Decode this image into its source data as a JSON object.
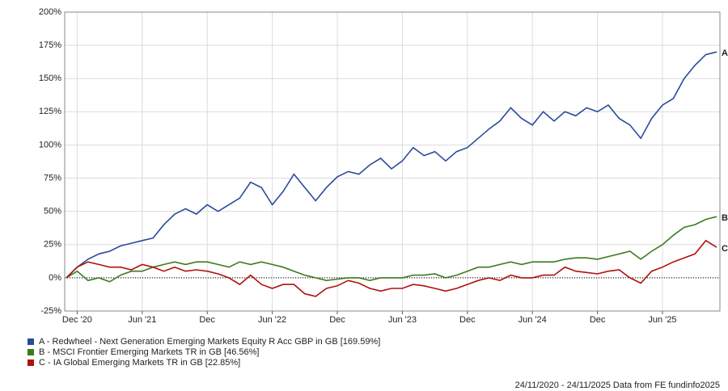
{
  "chart_data": {
    "type": "line",
    "categories": [
      null,
      "Dec '20",
      null,
      null,
      null,
      null,
      null,
      "Jun '21",
      null,
      null,
      null,
      null,
      null,
      "Dec",
      null,
      null,
      null,
      null,
      null,
      "Jun '22",
      null,
      null,
      null,
      null,
      null,
      "Dec",
      null,
      null,
      null,
      null,
      null,
      "Jun '23",
      null,
      null,
      null,
      null,
      null,
      "Dec",
      null,
      null,
      null,
      null,
      null,
      "Jun '24",
      null,
      null,
      null,
      null,
      null,
      "Dec",
      null,
      null,
      null,
      null,
      null,
      "Jun '25",
      null,
      null,
      null,
      null,
      null
    ],
    "series": [
      {
        "name": "A - Redwheel - Next Generation Emerging Markets Equity R Acc GBP in GB [169.59%]",
        "end_label": "A",
        "color": "#2a4b9b",
        "values": [
          0,
          8,
          14,
          18,
          20,
          24,
          26,
          28,
          30,
          40,
          48,
          52,
          48,
          55,
          50,
          55,
          60,
          72,
          68,
          55,
          65,
          78,
          68,
          58,
          68,
          76,
          80,
          78,
          85,
          90,
          82,
          88,
          98,
          92,
          95,
          88,
          95,
          98,
          105,
          112,
          118,
          128,
          120,
          115,
          125,
          118,
          125,
          122,
          128,
          125,
          130,
          120,
          115,
          105,
          120,
          130,
          135,
          150,
          160,
          168,
          170
        ]
      },
      {
        "name": "B - MSCI Frontier Emerging Markets TR in GB [46.56%]",
        "end_label": "B",
        "color": "#3d7a1e",
        "values": [
          0,
          5,
          -2,
          0,
          -3,
          2,
          5,
          5,
          8,
          10,
          12,
          10,
          12,
          12,
          10,
          8,
          12,
          10,
          12,
          10,
          8,
          5,
          2,
          0,
          -2,
          -1,
          0,
          0,
          -2,
          0,
          0,
          0,
          2,
          2,
          3,
          0,
          2,
          5,
          8,
          8,
          10,
          12,
          10,
          12,
          12,
          12,
          14,
          15,
          15,
          14,
          16,
          18,
          20,
          14,
          20,
          25,
          32,
          38,
          40,
          44,
          46
        ]
      },
      {
        "name": "C - IA Global Emerging Markets TR in GB [22.85%]",
        "end_label": "C",
        "color": "#b01010",
        "values": [
          0,
          8,
          12,
          10,
          8,
          8,
          6,
          10,
          8,
          5,
          8,
          5,
          6,
          5,
          3,
          0,
          -5,
          2,
          -5,
          -8,
          -5,
          -5,
          -12,
          -14,
          -8,
          -6,
          -2,
          -4,
          -8,
          -10,
          -8,
          -8,
          -5,
          -6,
          -8,
          -10,
          -8,
          -5,
          -2,
          0,
          -2,
          2,
          0,
          0,
          2,
          2,
          8,
          5,
          4,
          3,
          5,
          6,
          0,
          -4,
          5,
          8,
          12,
          15,
          18,
          28,
          23
        ]
      }
    ],
    "ylim": [
      -25,
      200
    ],
    "yticks": [
      {
        "value": -25,
        "label": "-25%"
      },
      {
        "value": 0,
        "label": "0%"
      },
      {
        "value": 25,
        "label": "25%"
      },
      {
        "value": 50,
        "label": "50%"
      },
      {
        "value": 75,
        "label": "75%"
      },
      {
        "value": 100,
        "label": "100%"
      },
      {
        "value": 125,
        "label": "125%"
      },
      {
        "value": 150,
        "label": "150%"
      },
      {
        "value": 175,
        "label": "175%"
      },
      {
        "value": 200,
        "label": "200%"
      }
    ],
    "grid": true,
    "footer": "24/11/2020 - 24/11/2025 Data from FE fundinfo2025"
  }
}
